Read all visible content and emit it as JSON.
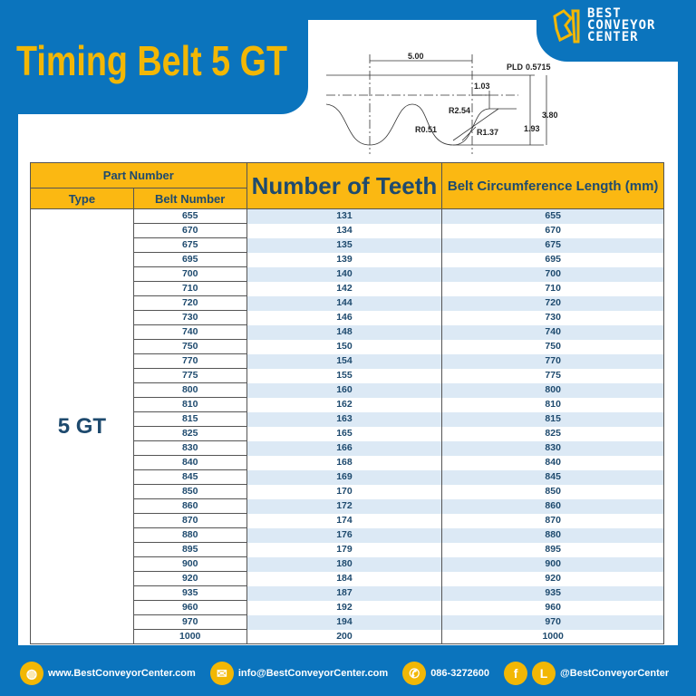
{
  "title": "Timing Belt 5 GT",
  "logo": {
    "line1": "BEST",
    "line2": "CONVEYOR",
    "line3": "CENTER"
  },
  "diagram": {
    "pitch": "5.00",
    "pld_label": "PLD",
    "pld": "0.5715",
    "d103": "1.03",
    "r254": "R2.54",
    "r051": "R0.51",
    "r137": "R1.37",
    "h380": "3.80",
    "h193": "1.93"
  },
  "table": {
    "header_part": "Part Number",
    "header_type": "Type",
    "header_belt": "Belt Number",
    "header_teeth": "Number of Teeth",
    "header_length": "Belt Circumference Length (mm)",
    "type": "5 GT",
    "rows": [
      [
        "655",
        "131",
        "655"
      ],
      [
        "670",
        "134",
        "670"
      ],
      [
        "675",
        "135",
        "675"
      ],
      [
        "695",
        "139",
        "695"
      ],
      [
        "700",
        "140",
        "700"
      ],
      [
        "710",
        "142",
        "710"
      ],
      [
        "720",
        "144",
        "720"
      ],
      [
        "730",
        "146",
        "730"
      ],
      [
        "740",
        "148",
        "740"
      ],
      [
        "750",
        "150",
        "750"
      ],
      [
        "770",
        "154",
        "770"
      ],
      [
        "775",
        "155",
        "775"
      ],
      [
        "800",
        "160",
        "800"
      ],
      [
        "810",
        "162",
        "810"
      ],
      [
        "815",
        "163",
        "815"
      ],
      [
        "825",
        "165",
        "825"
      ],
      [
        "830",
        "166",
        "830"
      ],
      [
        "840",
        "168",
        "840"
      ],
      [
        "845",
        "169",
        "845"
      ],
      [
        "850",
        "170",
        "850"
      ],
      [
        "860",
        "172",
        "860"
      ],
      [
        "870",
        "174",
        "870"
      ],
      [
        "880",
        "176",
        "880"
      ],
      [
        "895",
        "179",
        "895"
      ],
      [
        "900",
        "180",
        "900"
      ],
      [
        "920",
        "184",
        "920"
      ],
      [
        "935",
        "187",
        "935"
      ],
      [
        "960",
        "192",
        "960"
      ],
      [
        "970",
        "194",
        "970"
      ],
      [
        "1000",
        "200",
        "1000"
      ]
    ]
  },
  "footer": {
    "website": "www.BestConveyorCenter.com",
    "email": "info@BestConveyorCenter.com",
    "phone": "086-3272600",
    "social": "@BestConveyorCenter",
    "facebook_glyph": "f",
    "line_glyph": "L"
  },
  "colors": {
    "blue": "#0b74bd",
    "yellow": "#f2b705",
    "header": "#fbb812",
    "text": "#1e4a6e"
  }
}
